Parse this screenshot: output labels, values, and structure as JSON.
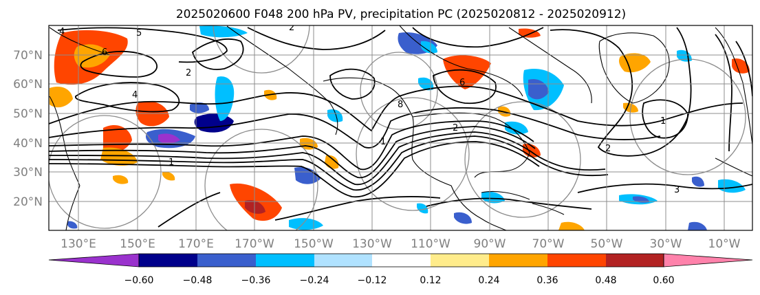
{
  "title": "2025020600 F048 200 hPa PV, precipitation PC (2025020812 - 2025020912)",
  "map": {
    "lon_labels": [
      "130°E",
      "150°E",
      "170°E",
      "170°W",
      "150°W",
      "130°W",
      "110°W",
      "90°W",
      "70°W",
      "50°W",
      "30°W",
      "10°W"
    ],
    "lat_labels": [
      "70°N",
      "60°N",
      "50°N",
      "40°N",
      "30°N",
      "20°N"
    ],
    "contour_labels": [
      "4",
      "5",
      "6",
      "4",
      "2",
      "1",
      "2",
      "8",
      "1",
      "2",
      "6",
      "3",
      "1",
      "2"
    ],
    "colors": {
      "land_outline": "#000000",
      "contour": "#000000",
      "circles": "#8c8c8c",
      "grid": "#8c8c8c"
    }
  },
  "colorbar": {
    "colors": [
      "#9a32cd",
      "#00008b",
      "#3a5fcd",
      "#00bfff",
      "#b0e2ff",
      "#ffffff",
      "#ffec8b",
      "#ffa500",
      "#ff4500",
      "#b22222",
      "#ff82ab"
    ],
    "tick_labels": [
      "−0.60",
      "−0.48",
      "−0.36",
      "−0.24",
      "−0.12",
      "0.12",
      "0.24",
      "0.36",
      "0.48",
      "0.60"
    ]
  }
}
